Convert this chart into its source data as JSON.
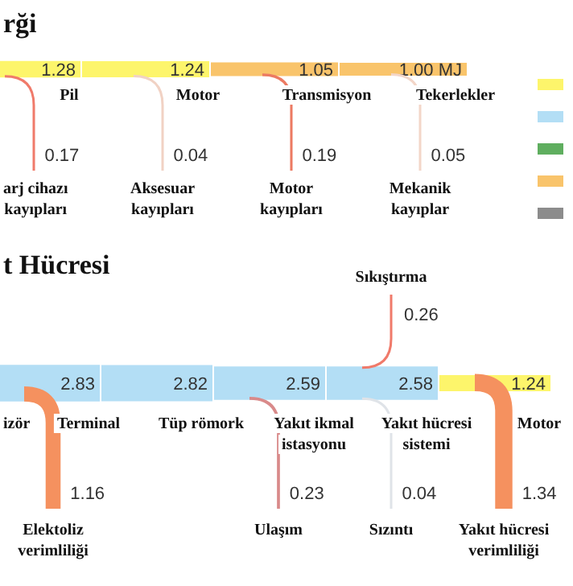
{
  "chart_data": [
    {
      "type": "other",
      "title": "rği",
      "categories": [
        "Pil",
        "Motor",
        "Transmisyon",
        "Tekerlekler"
      ],
      "data_labels": true,
      "series": [
        {
          "colors": [
            "#fdf56b",
            "#fdf56b",
            "#f9c46b",
            "#f9c46b"
          ],
          "values": [
            1.28,
            1.24,
            1.05,
            1.0
          ],
          "value_labels": [
            "1.28",
            "1.24",
            "1.05",
            "1.00 MJ"
          ]
        },
        {
          "colors": [
            "#f07a6a",
            "#f1d2c4",
            "#ec7a62",
            "#f3d6c8"
          ],
          "values": [
            0.17,
            0.04,
            0.19,
            0.05
          ]
        }
      ],
      "annotations": [
        {
          "text": "arj cihazı kayıpları",
          "x": "Pil"
        },
        {
          "text": "Aksesuar kayıpları",
          "x": "Motor"
        },
        {
          "text": "Motor kayıpları",
          "x": "Transmisyon"
        },
        {
          "text": "Mekanik kayıplar",
          "x": "Tekerlekler"
        }
      ]
    },
    {
      "type": "other",
      "title": "t Hücresi",
      "categories": [
        "izör",
        "Terminal",
        "Tüp römork",
        "Yakıt ikmal istasyonu",
        "Yakıt hücresi sistemi",
        "Motor"
      ],
      "data_labels": true,
      "series": [
        {
          "colors": [
            null,
            "#b3def5",
            "#b3def5",
            "#b3def5",
            "#b3def5",
            "#fdf56b"
          ],
          "values": [
            null,
            2.83,
            2.82,
            2.59,
            2.58,
            1.24
          ]
        },
        {
          "colors": [
            null,
            "#f5915f",
            null,
            "#d98a8a",
            "#dfe3e8",
            "#f5915f"
          ],
          "values": [
            null,
            1.16,
            null,
            0.23,
            0.04,
            1.34
          ]
        },
        {
          "colors": [
            null,
            null,
            null,
            null,
            "#f07a6a",
            null
          ],
          "values": [
            null,
            null,
            null,
            null,
            0.26,
            null
          ]
        }
      ],
      "annotations": [
        {
          "text": "Elektoliz verimliliği",
          "x": "Terminal"
        },
        {
          "text": "Ulaşım",
          "x": "Yakıt ikmal istasyonu"
        },
        {
          "text": "Sızıntı",
          "x": "Yakıt hücresi sistemi"
        },
        {
          "text": "Yakıt hücresi verimliliği",
          "x": "Motor"
        },
        {
          "text": "Sıkıştırma",
          "x": "Yakıt hücresi sistemi"
        }
      ]
    }
  ]
}
